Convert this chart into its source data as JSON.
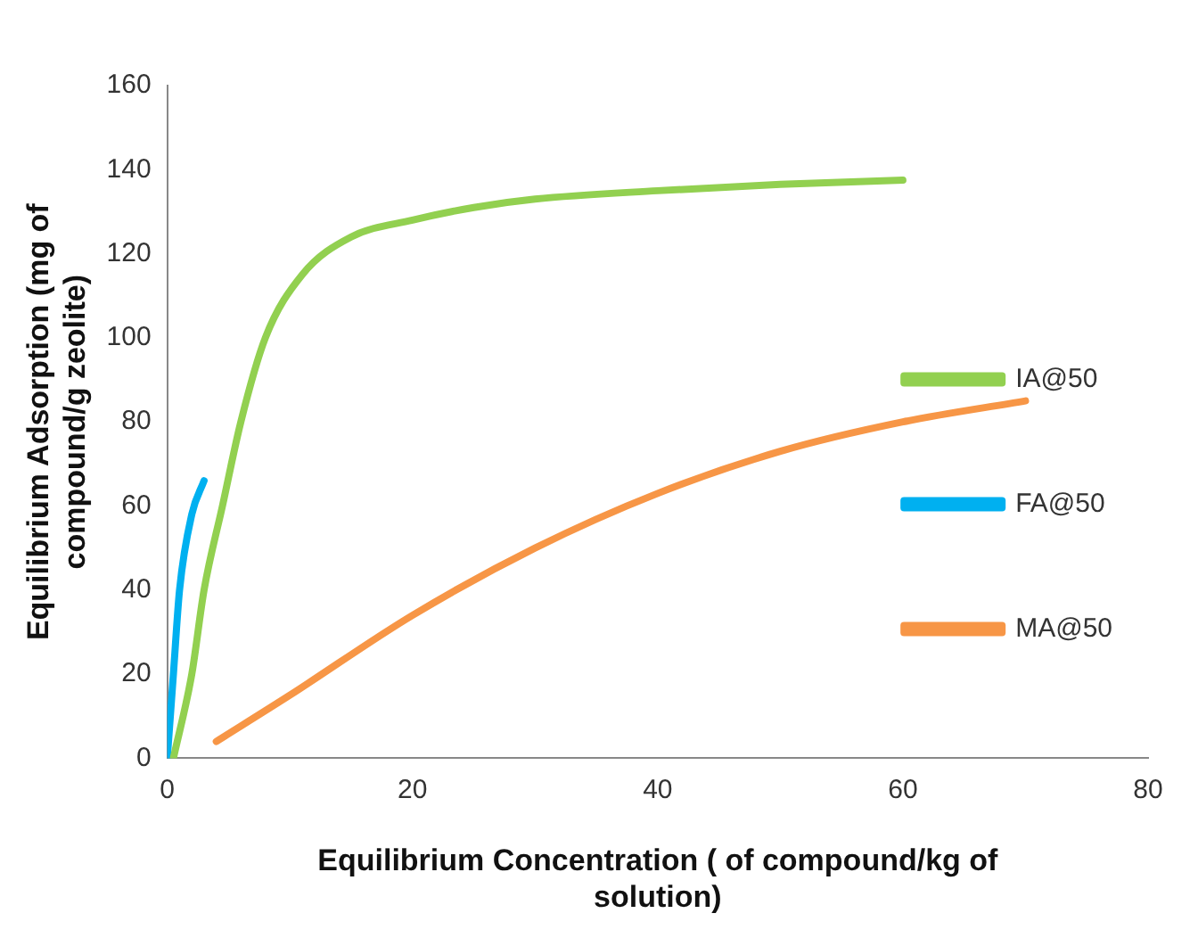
{
  "chart_data": {
    "type": "line",
    "xlabel": "Equilibrium Concentration ( of compound/kg of solution)",
    "ylabel": "Equilibrium Adsorption (mg of compound/g zeolite)",
    "xlim": [
      0,
      80
    ],
    "xticks": [
      0,
      20,
      40,
      60,
      80
    ],
    "ylim": [
      0,
      160
    ],
    "yticks": [
      0,
      20,
      40,
      60,
      80,
      100,
      120,
      140,
      160
    ],
    "grid": false,
    "legend": "right",
    "marker": "none",
    "line_style": "solid",
    "series": [
      {
        "name": "IA@50",
        "color": "#92d050",
        "x": [
          0.5,
          2,
          3,
          4.5,
          6,
          8,
          11,
          15,
          20,
          25,
          30,
          40,
          50,
          60
        ],
        "values": [
          0,
          20,
          40,
          60,
          80,
          100,
          115,
          124,
          128,
          131,
          133,
          135,
          136.5,
          137.5
        ]
      },
      {
        "name": "FA@50",
        "color": "#00b0f0",
        "x": [
          0,
          0.5,
          1,
          2,
          3
        ],
        "values": [
          0,
          20,
          40,
          58,
          66
        ]
      },
      {
        "name": "MA@50",
        "color": "#f79646",
        "x": [
          4,
          10,
          20,
          30,
          40,
          50,
          60,
          70
        ],
        "values": [
          4,
          15,
          34,
          50,
          63,
          73,
          80,
          85
        ]
      }
    ]
  }
}
